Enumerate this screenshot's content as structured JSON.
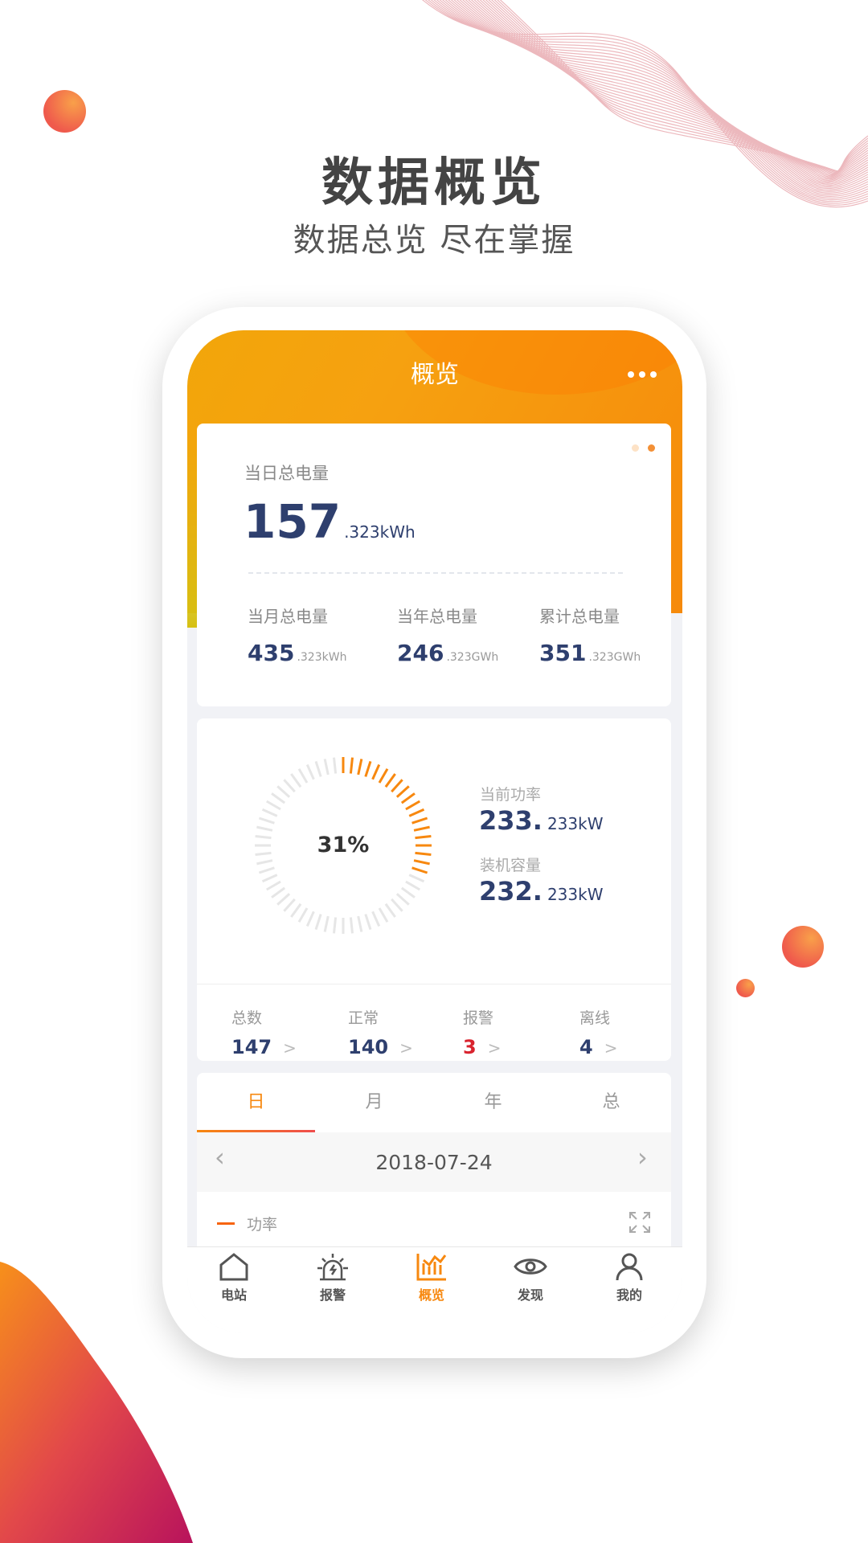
{
  "hero": {
    "title": "数据概览",
    "subtitle": "数据总览 尽在掌握"
  },
  "app": {
    "title": "概览",
    "more_icon": "more-dots-icon"
  },
  "energy": {
    "daily": {
      "label": "当日总电量",
      "value": "157",
      "unit": ".323kWh"
    },
    "items": [
      {
        "label": "当月总电量",
        "value": "435",
        "unit": ".323kWh"
      },
      {
        "label": "当年总电量",
        "value": "246",
        "unit": ".323GWh"
      },
      {
        "label": "累计总电量",
        "value": "351",
        "unit": ".323GWh"
      }
    ],
    "page_dots": 2,
    "active_dot": 2
  },
  "power": {
    "gauge_percent": 31,
    "gauge_label": "31%",
    "current": {
      "label": "当前功率",
      "value": "233.",
      "unit": "233kW"
    },
    "capacity": {
      "label": "装机容量",
      "value": "232.",
      "unit": "233kW"
    },
    "colors": {
      "active": "#f7880f",
      "inactive": "#e6e6e6"
    }
  },
  "stations": [
    {
      "label": "总数",
      "value": "147"
    },
    {
      "label": "正常",
      "value": "140"
    },
    {
      "label": "报警",
      "value": "3",
      "color": "#d9232e"
    },
    {
      "label": "离线",
      "value": "4"
    }
  ],
  "chart": {
    "tabs": [
      "日",
      "月",
      "年",
      "总"
    ],
    "active_tab": 0,
    "date": "2018-07-24",
    "legend": "功率"
  },
  "nav": [
    {
      "label": "电站",
      "icon": "home-icon"
    },
    {
      "label": "报警",
      "icon": "alarm-icon"
    },
    {
      "label": "概览",
      "icon": "chart-icon",
      "active": true
    },
    {
      "label": "发现",
      "icon": "eye-icon"
    },
    {
      "label": "我的",
      "icon": "user-icon"
    }
  ],
  "accent": "#f7880f"
}
